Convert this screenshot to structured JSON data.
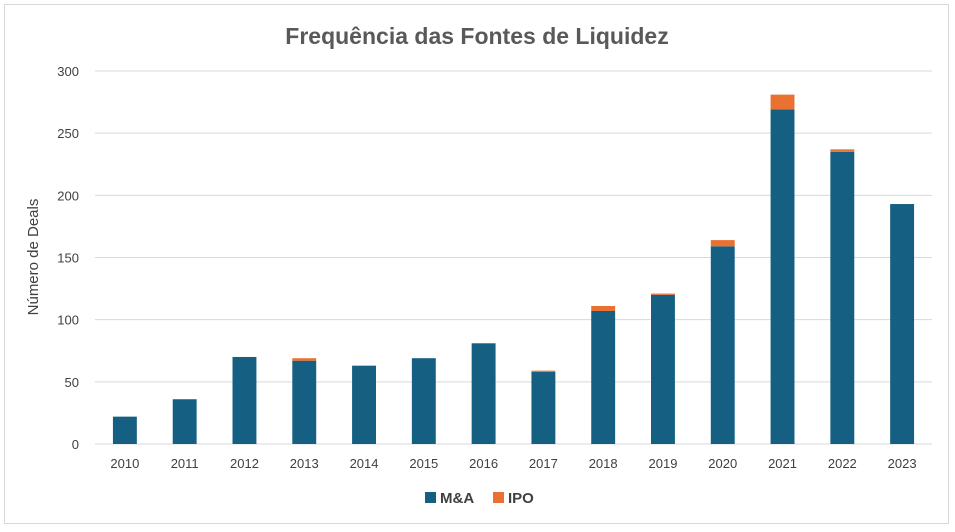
{
  "chart_data": {
    "type": "bar",
    "stacked": true,
    "title": "Frequência das Fontes de Liquidez",
    "xlabel": "",
    "ylabel": "Número de Deals",
    "ylim": [
      0,
      300
    ],
    "yticks": [
      0,
      50,
      100,
      150,
      200,
      250,
      300
    ],
    "grid": true,
    "legend_position": "bottom",
    "categories": [
      "2010",
      "2011",
      "2012",
      "2013",
      "2014",
      "2015",
      "2016",
      "2017",
      "2018",
      "2019",
      "2020",
      "2021",
      "2022",
      "2023"
    ],
    "series": [
      {
        "name": "M&A",
        "color": "#156082",
        "values": [
          22,
          36,
          70,
          67,
          63,
          69,
          81,
          58,
          107,
          120,
          159,
          269,
          235,
          193
        ]
      },
      {
        "name": "IPO",
        "color": "#e97132",
        "values": [
          0,
          0,
          0,
          2,
          0,
          0,
          0,
          1,
          4,
          1,
          5,
          12,
          2,
          0
        ]
      }
    ]
  }
}
